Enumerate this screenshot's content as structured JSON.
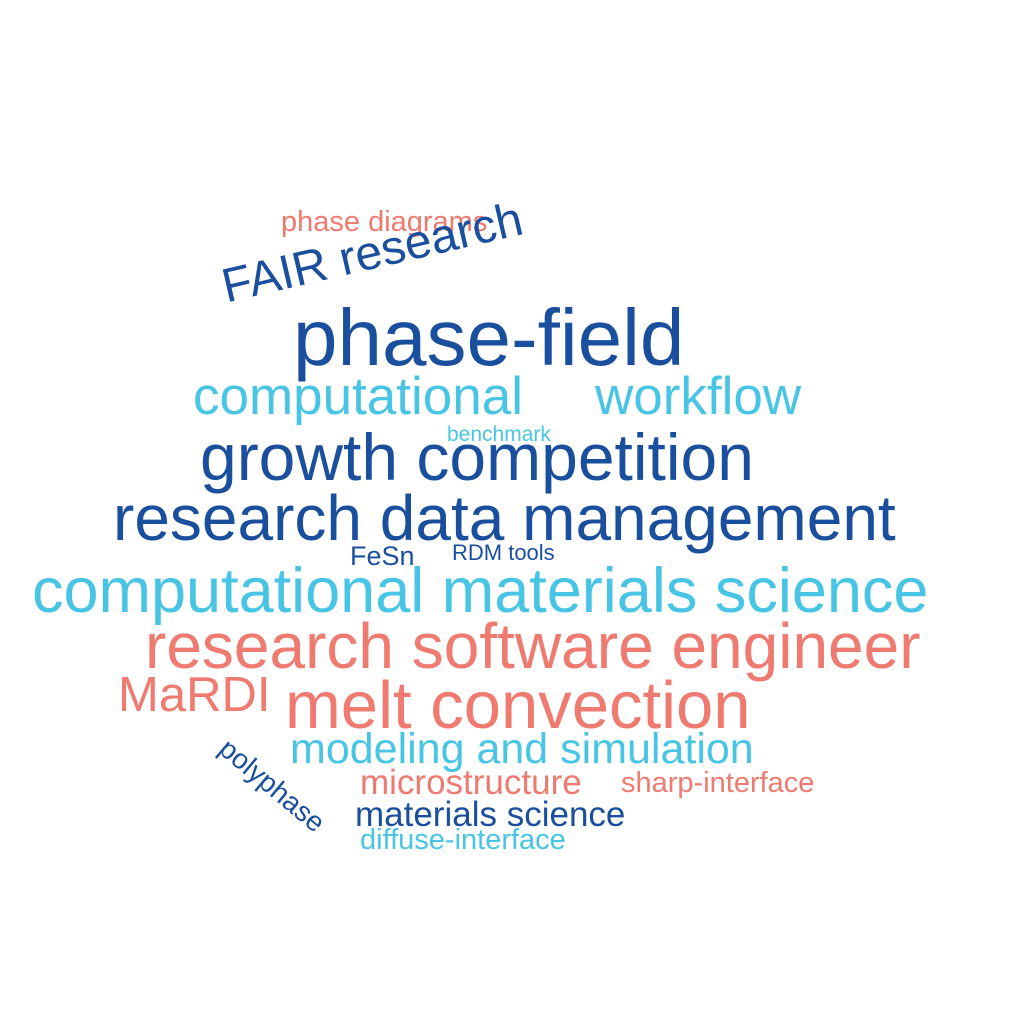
{
  "palette": {
    "dark_blue": "#1a4f9e",
    "light_blue": "#48c5e5",
    "salmon": "#ee7a70"
  },
  "words": {
    "phase_diagrams": "phase diagrams",
    "fair_research": "FAIR research",
    "phase_field": "phase-field",
    "computational": "computational",
    "workflow": "workflow",
    "benchmark": "benchmark",
    "growth_competition": "growth competition",
    "research_data_management": "research data management",
    "fesn": "FeSn",
    "rdm_tools": "RDM tools",
    "computational_materials_science": "computational materials science",
    "research_software_engineer": "research software engineer",
    "mardi": "MaRDI",
    "melt_convection": "melt convection",
    "polyphase": "polyphase",
    "modeling_and_simulation": "modeling and simulation",
    "microstructure": "microstructure",
    "sharp_interface": "sharp-interface",
    "materials_science": "materials science",
    "diffuse_interface": "diffuse-interface"
  }
}
